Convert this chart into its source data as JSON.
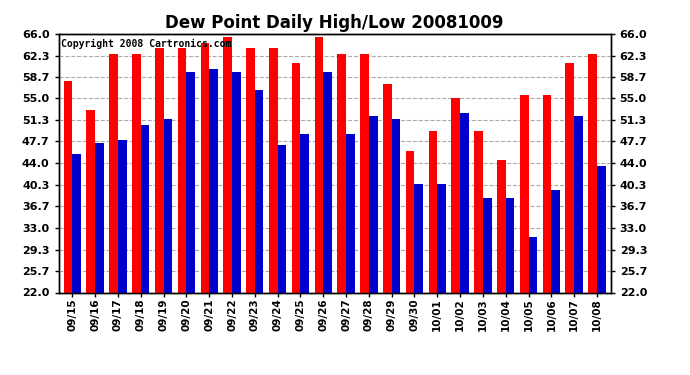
{
  "title": "Dew Point Daily High/Low 20081009",
  "copyright": "Copyright 2008 Cartronics.com",
  "dates": [
    "09/15",
    "09/16",
    "09/17",
    "09/18",
    "09/19",
    "09/20",
    "09/21",
    "09/22",
    "09/23",
    "09/24",
    "09/25",
    "09/26",
    "09/27",
    "09/28",
    "09/29",
    "09/30",
    "10/01",
    "10/02",
    "10/03",
    "10/04",
    "10/05",
    "10/06",
    "10/07",
    "10/08"
  ],
  "highs": [
    58.0,
    53.0,
    62.5,
    62.5,
    63.5,
    63.5,
    64.5,
    65.5,
    63.5,
    63.5,
    61.0,
    65.5,
    62.5,
    62.5,
    57.5,
    46.0,
    49.5,
    55.0,
    49.5,
    44.5,
    55.5,
    55.5,
    61.0,
    62.5
  ],
  "lows": [
    45.5,
    47.5,
    48.0,
    50.5,
    51.5,
    59.5,
    60.0,
    59.5,
    56.5,
    47.0,
    49.0,
    59.5,
    49.0,
    52.0,
    51.5,
    40.5,
    40.5,
    52.5,
    38.0,
    38.0,
    31.5,
    39.5,
    52.0,
    43.5
  ],
  "high_color": "#ff0000",
  "low_color": "#0000cc",
  "background_color": "#ffffff",
  "grid_color": "#aaaaaa",
  "ylim_min": 22.0,
  "ylim_max": 66.0,
  "yticks": [
    22.0,
    25.7,
    29.3,
    33.0,
    36.7,
    40.3,
    44.0,
    47.7,
    51.3,
    55.0,
    58.7,
    62.3,
    66.0
  ],
  "bar_width": 0.38,
  "figwidth": 6.9,
  "figheight": 3.75,
  "dpi": 100
}
